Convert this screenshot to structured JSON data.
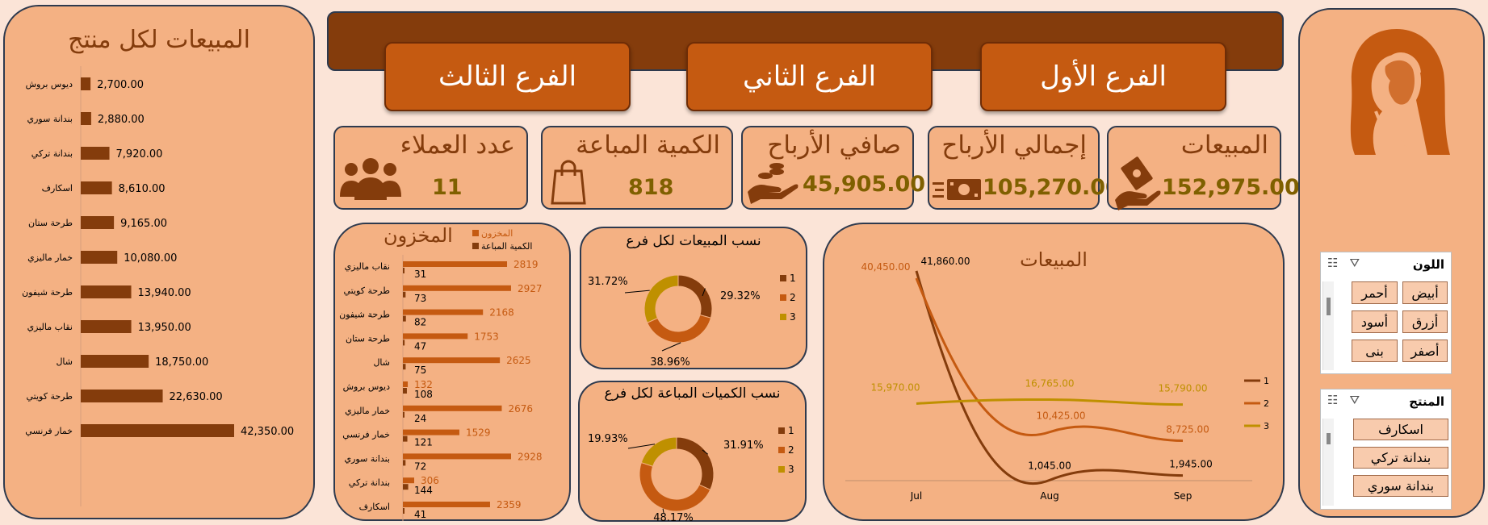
{
  "branches": {
    "b1": "الفرع الأول",
    "b2": "الفرع الثاني",
    "b3": "الفرع الثالث"
  },
  "kpis": {
    "sales": {
      "title": "المبيعات",
      "value": "152,975.00"
    },
    "gross_profit": {
      "title": "إجمالي الأرباح",
      "value": "105,270.00"
    },
    "net_profit": {
      "title": "صافي الأرباح",
      "value": "45,905.00"
    },
    "qty_sold": {
      "title": "الكمية المباعة",
      "value": "818"
    },
    "customers": {
      "title": "عدد العملاء",
      "value": "11"
    }
  },
  "product_sales": {
    "title": "المبيعات لكل منتج",
    "chart_data": {
      "type": "bar",
      "orientation": "horizontal",
      "categories": [
        "ديوس بروش",
        "بندانة سوري",
        "بندانة تركي",
        "اسكارف",
        "طرحة ستان",
        "خمار ماليزي",
        "طرحة شيفون",
        "نقاب ماليزي",
        "شال",
        "طرحة كويتي",
        "خمار فرنسي"
      ],
      "values": [
        2700,
        2880,
        7920,
        8610,
        9165,
        10080,
        13940,
        13950,
        18750,
        22630,
        42350
      ],
      "labels": [
        "2,700.00",
        "2,880.00",
        "7,920.00",
        "8,610.00",
        "9,165.00",
        "10,080.00",
        "13,940.00",
        "13,950.00",
        "18,750.00",
        "22,630.00",
        "42,350.00"
      ],
      "color": "#843c0c"
    }
  },
  "inventory": {
    "title": "المخزون",
    "legend": [
      "المخزون",
      "الكمية المباعة"
    ],
    "chart_data": {
      "type": "bar",
      "orientation": "horizontal",
      "categories": [
        "نقاب ماليزي",
        "طرحة كويتي",
        "طرحة شيفون",
        "طرحة ستان",
        "شال",
        "ديوس بروش",
        "خمار ماليزي",
        "خمار فرنسي",
        "بندانة سوري",
        "بندانة تركي",
        "اسكارف"
      ],
      "series": [
        {
          "name": "المخزون",
          "values": [
            2819,
            2927,
            2168,
            1753,
            2625,
            132,
            2676,
            1529,
            2928,
            306,
            2359
          ],
          "color": "#c55a11"
        },
        {
          "name": "الكمية المباعة",
          "values": [
            31,
            73,
            82,
            47,
            75,
            108,
            24,
            121,
            72,
            144,
            41
          ],
          "color": "#843c0c"
        }
      ]
    }
  },
  "sales_share": {
    "title": "نسب المبيعات لكل فرع",
    "chart_data": {
      "type": "pie",
      "donut": true,
      "categories": [
        "1",
        "2",
        "3"
      ],
      "values": [
        29.32,
        38.96,
        31.72
      ],
      "labels": [
        "29.32%",
        "38.96%",
        "31.72%"
      ],
      "colors": [
        "#843c0c",
        "#c55a11",
        "#bf9000"
      ]
    }
  },
  "qty_share": {
    "title": "نسب الكميات المباعة لكل فرع",
    "chart_data": {
      "type": "pie",
      "donut": true,
      "categories": [
        "1",
        "2",
        "3"
      ],
      "values": [
        31.91,
        48.17,
        19.93
      ],
      "labels": [
        "31.91%",
        "48.17%",
        "19.93%"
      ],
      "colors": [
        "#843c0c",
        "#c55a11",
        "#bf9000"
      ]
    }
  },
  "sales_trend": {
    "title": "المبيعات",
    "chart_data": {
      "type": "line",
      "categories": [
        "Jul",
        "Aug",
        "Sep"
      ],
      "ylim": [
        0,
        45000
      ],
      "series": [
        {
          "name": "1",
          "values": [
            41860,
            1045,
            1945
          ],
          "labels": [
            "41,860.00",
            "1,045.00",
            "1,945.00"
          ],
          "color": "#843c0c"
        },
        {
          "name": "2",
          "values": [
            40450,
            10425,
            8725
          ],
          "labels": [
            "40,450.00",
            "10,425.00",
            "8,725.00"
          ],
          "color": "#c55a11"
        },
        {
          "name": "3",
          "values": [
            15970,
            16765,
            15790
          ],
          "labels": [
            "15,970.00",
            "16,765.00",
            "15,790.00"
          ],
          "color": "#bf9000"
        }
      ]
    }
  },
  "slicer_color": {
    "title": "اللون",
    "items": [
      "أبيض",
      "أحمر",
      "أزرق",
      "أسود",
      "أصفر",
      "بنى"
    ]
  },
  "slicer_product": {
    "title": "المنتج",
    "items": [
      "اسكارف",
      "بندانة تركي",
      "بندانة سوري"
    ]
  }
}
